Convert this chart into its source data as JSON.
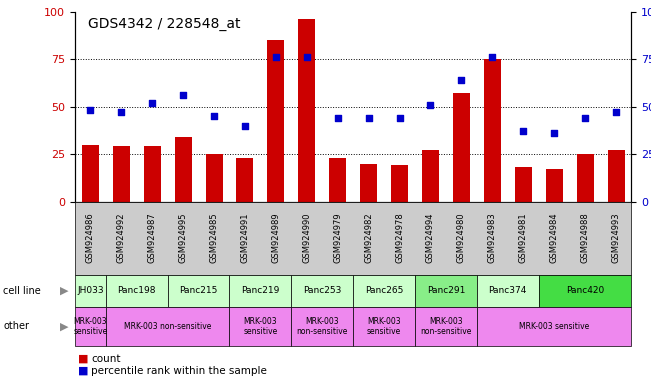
{
  "title": "GDS4342 / 228548_at",
  "samples": [
    "GSM924986",
    "GSM924992",
    "GSM924987",
    "GSM924995",
    "GSM924985",
    "GSM924991",
    "GSM924989",
    "GSM924990",
    "GSM924979",
    "GSM924982",
    "GSM924978",
    "GSM924994",
    "GSM924980",
    "GSM924983",
    "GSM924981",
    "GSM924984",
    "GSM924988",
    "GSM924993"
  ],
  "counts": [
    30,
    29,
    29,
    34,
    25,
    23,
    85,
    96,
    23,
    20,
    19,
    27,
    57,
    75,
    18,
    17,
    25,
    27
  ],
  "percentiles": [
    48,
    47,
    52,
    56,
    45,
    40,
    76,
    76,
    44,
    44,
    44,
    51,
    64,
    76,
    37,
    36,
    44,
    47
  ],
  "cell_lines": [
    {
      "label": "JH033",
      "start": 0,
      "end": 1,
      "color": "#ccffcc"
    },
    {
      "label": "Panc198",
      "start": 1,
      "end": 3,
      "color": "#ccffcc"
    },
    {
      "label": "Panc215",
      "start": 3,
      "end": 5,
      "color": "#ccffcc"
    },
    {
      "label": "Panc219",
      "start": 5,
      "end": 7,
      "color": "#ccffcc"
    },
    {
      "label": "Panc253",
      "start": 7,
      "end": 9,
      "color": "#ccffcc"
    },
    {
      "label": "Panc265",
      "start": 9,
      "end": 11,
      "color": "#ccffcc"
    },
    {
      "label": "Panc291",
      "start": 11,
      "end": 13,
      "color": "#88ee88"
    },
    {
      "label": "Panc374",
      "start": 13,
      "end": 15,
      "color": "#ccffcc"
    },
    {
      "label": "Panc420",
      "start": 15,
      "end": 18,
      "color": "#44dd44"
    }
  ],
  "other_rows": [
    {
      "label": "MRK-003\nsensitive",
      "start": 0,
      "end": 1,
      "color": "#ee88ee"
    },
    {
      "label": "MRK-003 non-sensitive",
      "start": 1,
      "end": 5,
      "color": "#ee88ee"
    },
    {
      "label": "MRK-003\nsensitive",
      "start": 5,
      "end": 7,
      "color": "#ee88ee"
    },
    {
      "label": "MRK-003\nnon-sensitive",
      "start": 7,
      "end": 9,
      "color": "#ee88ee"
    },
    {
      "label": "MRK-003\nsensitive",
      "start": 9,
      "end": 11,
      "color": "#ee88ee"
    },
    {
      "label": "MRK-003\nnon-sensitive",
      "start": 11,
      "end": 13,
      "color": "#ee88ee"
    },
    {
      "label": "MRK-003 sensitive",
      "start": 13,
      "end": 18,
      "color": "#ee88ee"
    }
  ],
  "bar_color": "#cc0000",
  "dot_color": "#0000cc",
  "grid_color": "#000000",
  "tick_color_left": "#cc0000",
  "tick_color_right": "#0000cc",
  "gsm_bg_color": "#cccccc",
  "cell_line_label": "cell line",
  "other_label": "other",
  "legend_count_label": "count",
  "legend_percentile_label": "percentile rank within the sample"
}
